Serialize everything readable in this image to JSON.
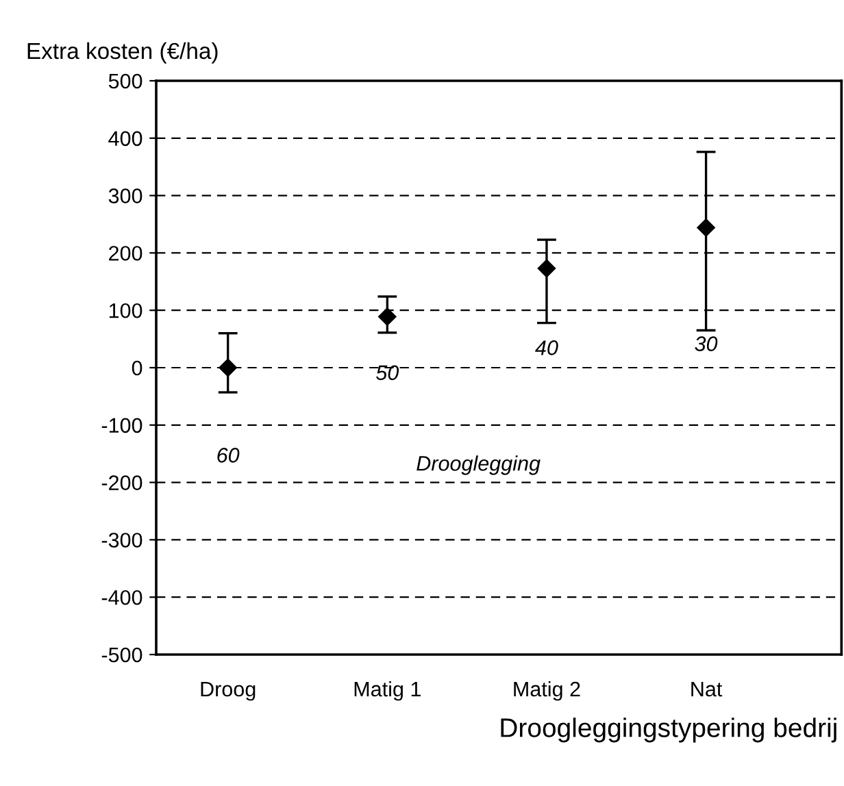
{
  "chart_data": {
    "type": "scatter",
    "ylabel": "Extra kosten (€/ha)",
    "xlabel": "Droogleggingstypering bedrij",
    "categories": [
      "Droog",
      "Matig 1",
      "Matig 2",
      "Nat"
    ],
    "series": [
      {
        "color": "#000000",
        "values": [
          0,
          89,
          173,
          244
        ],
        "errors": [
          [
            -43,
            60
          ],
          [
            61,
            124
          ],
          [
            78,
            223
          ],
          [
            65,
            376
          ]
        ]
      }
    ],
    "marker": "diamond",
    "grid": "y",
    "ylim": [
      -500,
      500
    ],
    "yticks": [
      -500,
      -400,
      -300,
      -200,
      -100,
      0,
      100,
      200,
      300,
      400,
      500
    ],
    "annotations": [
      "60",
      "50",
      "40",
      "30",
      "Drooglegging"
    ]
  }
}
